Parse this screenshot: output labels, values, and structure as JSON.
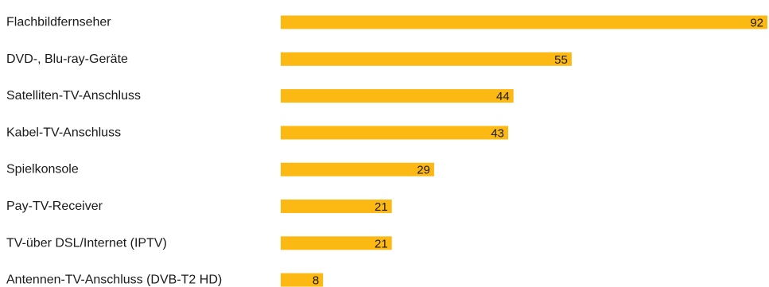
{
  "chart_data": {
    "type": "bar",
    "orientation": "horizontal",
    "categories": [
      "Flachbildfernseher",
      "DVD-, Blu-ray-Geräte",
      "Satelliten-TV-Anschluss",
      "Kabel-TV-Anschluss",
      "Spielkonsole",
      "Pay-TV-Receiver",
      "TV-über DSL/Internet (IPTV)",
      "Antennen-TV-Anschluss (DVB-T2 HD)"
    ],
    "values": [
      92,
      55,
      44,
      43,
      29,
      21,
      21,
      8
    ],
    "data_labels": [
      "92",
      "55",
      "44",
      "43",
      "29",
      "21",
      "21",
      "8"
    ],
    "title": "",
    "xlabel": "",
    "ylabel": "",
    "xlim": [
      0,
      92
    ],
    "grid": false,
    "legend": "none",
    "bar_color": "#FDB913"
  }
}
